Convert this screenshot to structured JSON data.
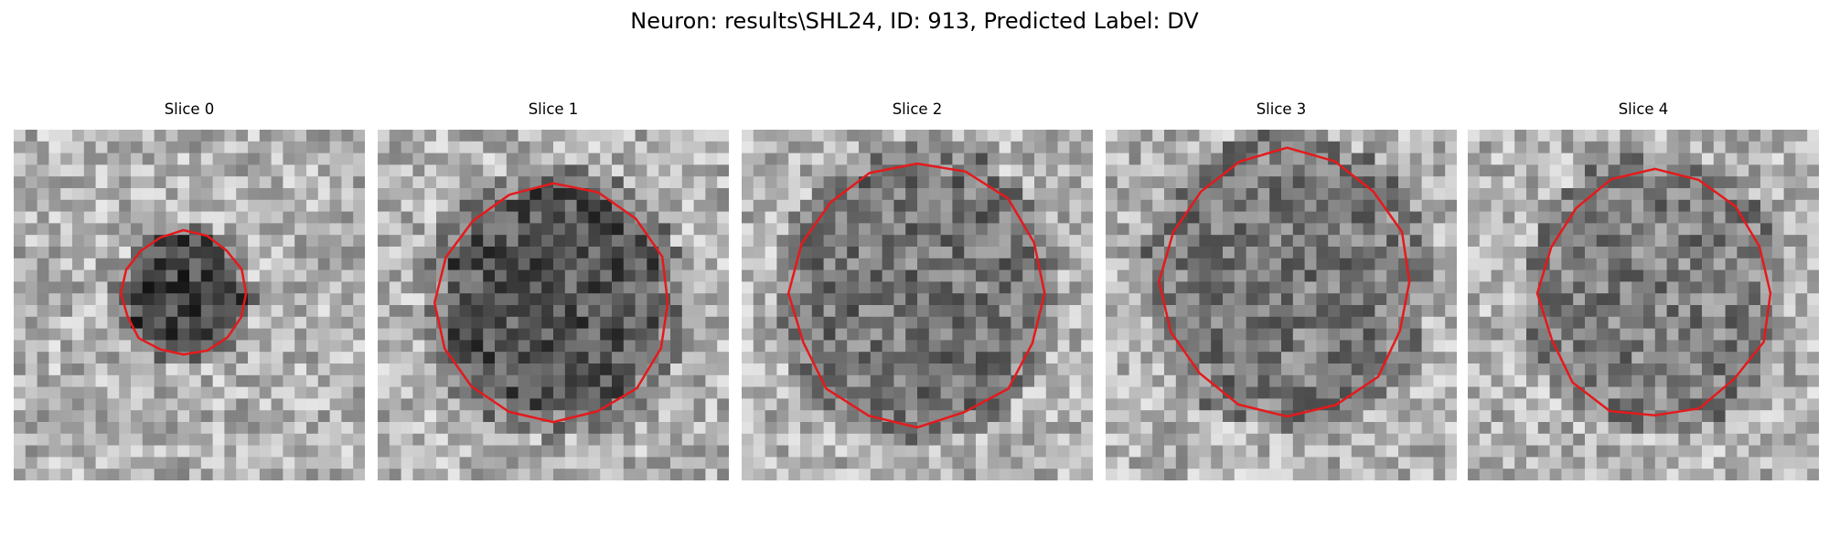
{
  "figure": {
    "title": "Neuron: results\\SHL24, ID: 913, Predicted Label: DV"
  },
  "colors": {
    "background": "#ffffff",
    "contour": "#e41a1c",
    "colormap": "gray"
  },
  "panels": [
    {
      "title": "Slice 0"
    },
    {
      "title": "Slice 1"
    },
    {
      "title": "Slice 2"
    },
    {
      "title": "Slice 3"
    },
    {
      "title": "Slice 4"
    }
  ]
}
